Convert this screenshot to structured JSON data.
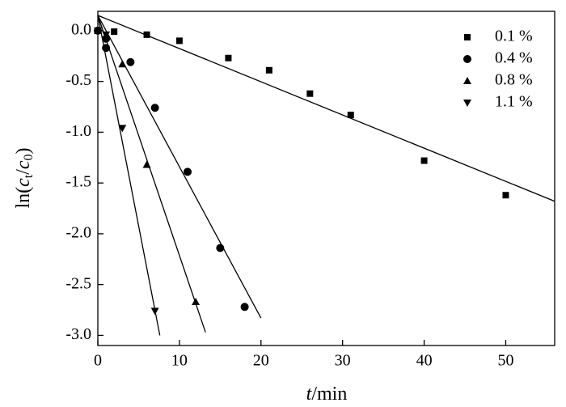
{
  "chart_data": {
    "type": "scatter",
    "xlabel": [
      "t",
      "/min"
    ],
    "ylabel": [
      "ln(",
      "c",
      "t",
      "/",
      "c",
      "0",
      ")"
    ],
    "xlim": [
      0,
      56
    ],
    "ylim": [
      -3.1,
      0.19
    ],
    "xticks": [
      0,
      10,
      20,
      30,
      40,
      50
    ],
    "yticks": [
      {
        "value": 0,
        "label": "0.0"
      },
      -0.5,
      {
        "value": -1,
        "label": "-1.0"
      },
      -1.5,
      {
        "value": -2,
        "label": "-2.0"
      },
      -2.5,
      {
        "value": -3,
        "label": "-3.0"
      }
    ],
    "legend": "top-right",
    "series": [
      {
        "name": "0.1 %",
        "color": "#000000",
        "marker": "square",
        "x": [
          0,
          2,
          6,
          10,
          16,
          21,
          26,
          31,
          40,
          50
        ],
        "values": [
          0,
          -0.01,
          -0.04,
          -0.1,
          -0.27,
          -0.39,
          -0.62,
          -0.83,
          -1.28,
          -1.62
        ],
        "fit": {
          "x": [
            0,
            56
          ],
          "y": [
            0.15,
            -1.68
          ]
        }
      },
      {
        "name": "0.4 %",
        "color": "#000000",
        "marker": "circle",
        "x": [
          0,
          1,
          1,
          4,
          7,
          11,
          15,
          18
        ],
        "values": [
          0,
          -0.08,
          -0.17,
          -0.31,
          -0.76,
          -1.39,
          -2.14,
          -2.72
        ],
        "fit": {
          "x": [
            0,
            20
          ],
          "y": [
            0.15,
            -2.83
          ]
        }
      },
      {
        "name": "0.8 %",
        "color": "#000000",
        "marker": "triangle",
        "x": [
          0,
          1,
          3,
          6,
          12
        ],
        "values": [
          0,
          -0.06,
          -0.33,
          -1.32,
          -2.67
        ],
        "fit": {
          "x": [
            0,
            13.2
          ],
          "y": [
            0.15,
            -2.97
          ]
        }
      },
      {
        "name": "1.1 %",
        "color": "#000000",
        "marker": "triangle-down",
        "x": [
          0,
          1,
          3,
          7
        ],
        "values": [
          0,
          -0.04,
          -0.96,
          -2.76
        ],
        "fit": {
          "x": [
            0,
            7.6
          ],
          "y": [
            0.15,
            -3.0
          ]
        }
      }
    ]
  }
}
